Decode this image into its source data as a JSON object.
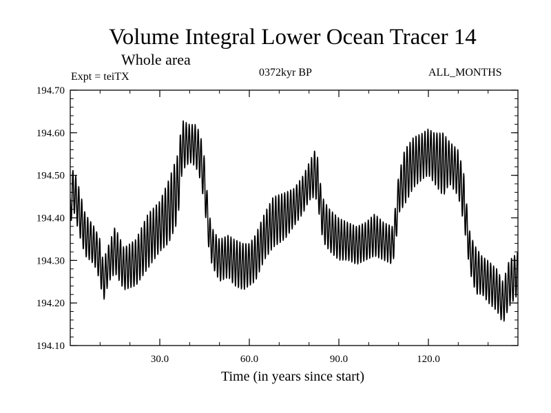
{
  "page": {
    "title": "Volume Integral Lower Ocean Tracer 14",
    "subtitle": "Whole area",
    "expt_label": "Expt = teiTX",
    "period_label": "0372kyr BP",
    "months_label": "ALL_MONTHS"
  },
  "chart_data": {
    "type": "line",
    "title": "Volume Integral Lower Ocean Tracer 14",
    "subtitle": "Whole area",
    "xlabel": "Time (in years since start)",
    "ylabel": "",
    "xlim": [
      0,
      150
    ],
    "ylim": [
      194.1,
      194.7
    ],
    "x_ticks": [
      30,
      60,
      90,
      120
    ],
    "x_tick_labels": [
      "30.0",
      "60.0",
      "90.0",
      "120.0"
    ],
    "x_minor_step": 10,
    "y_ticks": [
      194.1,
      194.2,
      194.3,
      194.4,
      194.5,
      194.6,
      194.7
    ],
    "y_tick_labels": [
      "194.10",
      "194.20",
      "194.30",
      "194.40",
      "194.50",
      "194.60",
      "194.70"
    ],
    "y_minor_step": 0.02,
    "grid": false,
    "series": [
      {
        "name": "Tracer 14",
        "color": "#000000",
        "sampling": "monthly (annual cycle)",
        "seasonal_amplitude_approx": 0.05,
        "envelope": {
          "x": [
            0,
            1,
            3,
            5,
            8,
            10,
            11,
            13,
            15,
            18,
            22,
            26,
            30,
            33,
            36,
            37.5,
            40,
            42,
            43.5,
            45,
            46,
            47,
            48,
            50,
            53,
            55,
            58,
            60,
            62,
            65,
            68,
            72,
            75,
            78,
            80,
            82,
            83,
            84,
            85,
            87,
            90,
            93,
            96,
            99,
            102,
            105,
            108,
            109,
            110,
            112,
            115,
            118,
            120,
            122,
            125,
            127,
            130,
            132,
            133,
            134,
            136,
            138,
            140,
            143,
            145,
            147,
            150
          ],
          "min": [
            194.38,
            194.42,
            194.36,
            194.31,
            194.29,
            194.25,
            194.2,
            194.25,
            194.27,
            194.23,
            194.24,
            194.28,
            194.32,
            194.34,
            194.39,
            194.51,
            194.53,
            194.52,
            194.49,
            194.43,
            194.35,
            194.3,
            194.28,
            194.25,
            194.26,
            194.24,
            194.23,
            194.24,
            194.25,
            194.3,
            194.33,
            194.35,
            194.38,
            194.41,
            194.44,
            194.45,
            194.43,
            194.37,
            194.34,
            194.32,
            194.3,
            194.3,
            194.29,
            194.3,
            194.31,
            194.3,
            194.29,
            194.33,
            194.41,
            194.43,
            194.47,
            194.49,
            194.5,
            194.48,
            194.45,
            194.48,
            194.45,
            194.38,
            194.32,
            194.27,
            194.22,
            194.22,
            194.2,
            194.18,
            194.15,
            194.19,
            194.22
          ],
          "max": [
            194.46,
            194.52,
            194.47,
            194.41,
            194.38,
            194.35,
            194.3,
            194.34,
            194.38,
            194.33,
            194.35,
            194.41,
            194.44,
            194.49,
            194.55,
            194.63,
            194.62,
            194.62,
            194.6,
            194.54,
            194.45,
            194.39,
            194.37,
            194.35,
            194.36,
            194.35,
            194.34,
            194.34,
            194.36,
            194.41,
            194.45,
            194.46,
            194.47,
            194.5,
            194.53,
            194.56,
            194.54,
            194.47,
            194.44,
            194.42,
            194.4,
            194.39,
            194.38,
            194.39,
            194.41,
            194.39,
            194.38,
            194.43,
            194.5,
            194.56,
            194.59,
            194.6,
            194.61,
            194.6,
            194.6,
            194.58,
            194.56,
            194.5,
            194.42,
            194.36,
            194.33,
            194.31,
            194.3,
            194.28,
            194.25,
            194.3,
            194.32
          ]
        }
      }
    ]
  }
}
